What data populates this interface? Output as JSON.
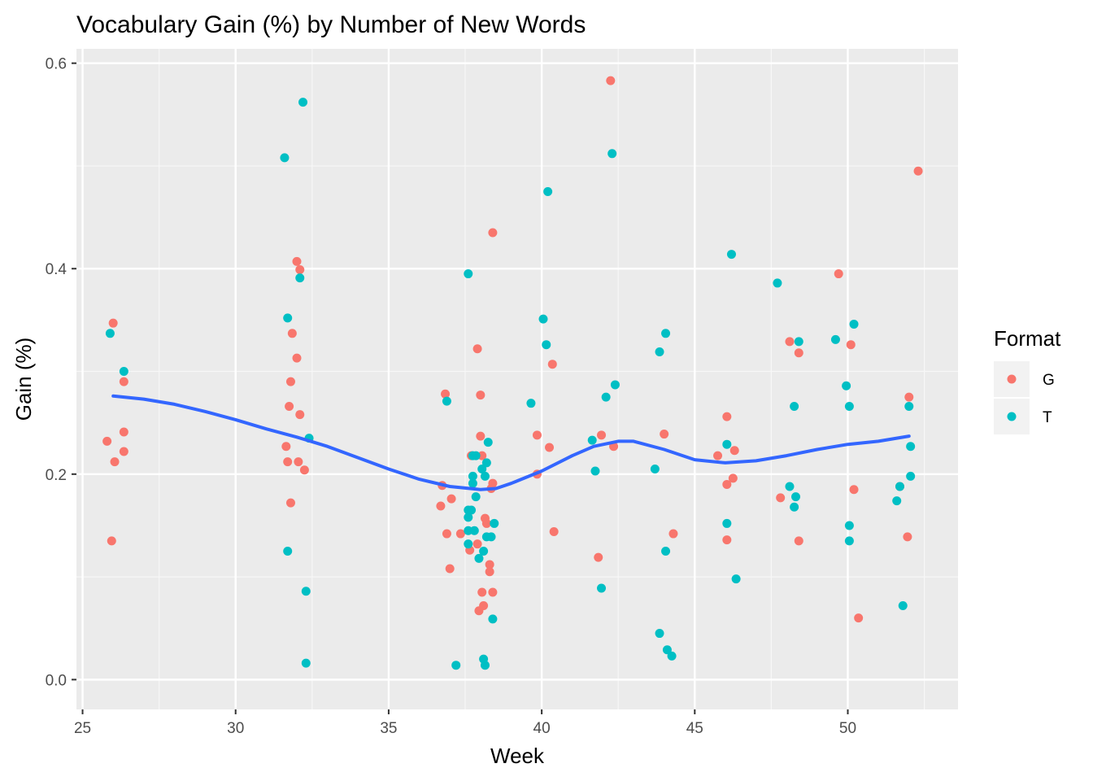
{
  "chart_data": {
    "type": "scatter",
    "title": "Vocabulary Gain (%) by Number of New Words",
    "xlabel": "Week",
    "ylabel": "Gain (%)",
    "xlim": [
      24.8,
      53.6
    ],
    "ylim": [
      -0.029,
      0.614
    ],
    "x_ticks": [
      {
        "value": 25,
        "label": "25"
      },
      {
        "value": 30,
        "label": "30"
      },
      {
        "value": 35,
        "label": "35"
      },
      {
        "value": 40,
        "label": "40"
      },
      {
        "value": 45,
        "label": "45"
      },
      {
        "value": 50,
        "label": "50"
      }
    ],
    "y_ticks": [
      {
        "value": 0.0,
        "label": "0.0"
      },
      {
        "value": 0.2,
        "label": "0.2"
      },
      {
        "value": 0.4,
        "label": "0.4"
      },
      {
        "value": 0.6,
        "label": "0.6"
      }
    ],
    "grid": true,
    "legend": {
      "title": "Format",
      "placement": "right"
    },
    "series": [
      {
        "name": "G",
        "color": "#F8766D",
        "points": [
          [
            25.8,
            0.232
          ],
          [
            26.0,
            0.347
          ],
          [
            25.95,
            0.135
          ],
          [
            26.05,
            0.212
          ],
          [
            26.35,
            0.29
          ],
          [
            26.35,
            0.241
          ],
          [
            26.35,
            0.222
          ],
          [
            31.65,
            0.227
          ],
          [
            31.7,
            0.212
          ],
          [
            31.75,
            0.266
          ],
          [
            31.8,
            0.29
          ],
          [
            31.8,
            0.172
          ],
          [
            31.85,
            0.337
          ],
          [
            32.0,
            0.407
          ],
          [
            32.0,
            0.313
          ],
          [
            32.05,
            0.212
          ],
          [
            32.1,
            0.399
          ],
          [
            32.1,
            0.258
          ],
          [
            32.25,
            0.204
          ],
          [
            36.7,
            0.169
          ],
          [
            36.75,
            0.189
          ],
          [
            36.85,
            0.278
          ],
          [
            36.9,
            0.142
          ],
          [
            37.0,
            0.108
          ],
          [
            37.05,
            0.176
          ],
          [
            37.35,
            0.142
          ],
          [
            37.65,
            0.126
          ],
          [
            37.7,
            0.218
          ],
          [
            37.9,
            0.322
          ],
          [
            37.9,
            0.132
          ],
          [
            37.95,
            0.067
          ],
          [
            38.0,
            0.237
          ],
          [
            38.0,
            0.277
          ],
          [
            38.05,
            0.218
          ],
          [
            38.05,
            0.085
          ],
          [
            38.1,
            0.072
          ],
          [
            38.15,
            0.157
          ],
          [
            38.2,
            0.152
          ],
          [
            38.3,
            0.105
          ],
          [
            38.3,
            0.112
          ],
          [
            38.35,
            0.186
          ],
          [
            38.4,
            0.435
          ],
          [
            38.4,
            0.191
          ],
          [
            38.4,
            0.085
          ],
          [
            39.85,
            0.238
          ],
          [
            39.85,
            0.2
          ],
          [
            40.25,
            0.226
          ],
          [
            40.35,
            0.307
          ],
          [
            40.4,
            0.144
          ],
          [
            41.85,
            0.119
          ],
          [
            41.95,
            0.238
          ],
          [
            42.25,
            0.583
          ],
          [
            42.35,
            0.227
          ],
          [
            44.0,
            0.239
          ],
          [
            44.3,
            0.142
          ],
          [
            45.75,
            0.218
          ],
          [
            46.05,
            0.256
          ],
          [
            46.05,
            0.19
          ],
          [
            46.05,
            0.136
          ],
          [
            46.25,
            0.196
          ],
          [
            46.3,
            0.223
          ],
          [
            47.8,
            0.177
          ],
          [
            48.1,
            0.329
          ],
          [
            48.4,
            0.318
          ],
          [
            48.4,
            0.135
          ],
          [
            49.7,
            0.395
          ],
          [
            50.1,
            0.326
          ],
          [
            50.2,
            0.185
          ],
          [
            50.35,
            0.06
          ],
          [
            51.7,
            0.188
          ],
          [
            51.95,
            0.139
          ],
          [
            52.0,
            0.275
          ],
          [
            52.3,
            0.495
          ]
        ]
      },
      {
        "name": "T",
        "color": "#00BFC4",
        "points": [
          [
            25.9,
            0.337
          ],
          [
            26.35,
            0.3
          ],
          [
            31.6,
            0.508
          ],
          [
            31.7,
            0.352
          ],
          [
            31.7,
            0.125
          ],
          [
            32.1,
            0.391
          ],
          [
            32.2,
            0.562
          ],
          [
            32.3,
            0.086
          ],
          [
            32.3,
            0.016
          ],
          [
            32.4,
            0.235
          ],
          [
            36.9,
            0.271
          ],
          [
            37.2,
            0.014
          ],
          [
            37.6,
            0.395
          ],
          [
            37.6,
            0.165
          ],
          [
            37.6,
            0.158
          ],
          [
            37.6,
            0.145
          ],
          [
            37.6,
            0.132
          ],
          [
            37.7,
            0.165
          ],
          [
            37.75,
            0.198
          ],
          [
            37.75,
            0.191
          ],
          [
            37.75,
            0.218
          ],
          [
            37.8,
            0.145
          ],
          [
            37.85,
            0.218
          ],
          [
            37.85,
            0.178
          ],
          [
            37.95,
            0.118
          ],
          [
            38.05,
            0.205
          ],
          [
            38.1,
            0.125
          ],
          [
            38.1,
            0.02
          ],
          [
            38.15,
            0.014
          ],
          [
            38.15,
            0.198
          ],
          [
            38.2,
            0.211
          ],
          [
            38.2,
            0.139
          ],
          [
            38.25,
            0.231
          ],
          [
            38.35,
            0.139
          ],
          [
            38.4,
            0.059
          ],
          [
            38.45,
            0.152
          ],
          [
            39.65,
            0.269
          ],
          [
            40.05,
            0.351
          ],
          [
            40.15,
            0.326
          ],
          [
            40.2,
            0.475
          ],
          [
            41.65,
            0.233
          ],
          [
            41.75,
            0.203
          ],
          [
            41.95,
            0.089
          ],
          [
            42.1,
            0.275
          ],
          [
            42.3,
            0.512
          ],
          [
            42.4,
            0.287
          ],
          [
            43.7,
            0.205
          ],
          [
            43.85,
            0.045
          ],
          [
            43.85,
            0.319
          ],
          [
            44.05,
            0.125
          ],
          [
            44.05,
            0.337
          ],
          [
            44.1,
            0.029
          ],
          [
            44.25,
            0.023
          ],
          [
            46.05,
            0.229
          ],
          [
            46.05,
            0.152
          ],
          [
            46.2,
            0.414
          ],
          [
            46.35,
            0.098
          ],
          [
            47.7,
            0.386
          ],
          [
            48.1,
            0.188
          ],
          [
            48.25,
            0.266
          ],
          [
            48.25,
            0.168
          ],
          [
            48.3,
            0.178
          ],
          [
            48.4,
            0.329
          ],
          [
            49.6,
            0.331
          ],
          [
            49.95,
            0.286
          ],
          [
            50.05,
            0.266
          ],
          [
            50.05,
            0.15
          ],
          [
            50.05,
            0.135
          ],
          [
            50.2,
            0.346
          ],
          [
            51.6,
            0.174
          ],
          [
            51.7,
            0.188
          ],
          [
            51.8,
            0.072
          ],
          [
            52.0,
            0.266
          ],
          [
            52.05,
            0.227
          ],
          [
            52.05,
            0.198
          ]
        ]
      }
    ],
    "smooth_line": {
      "color": "#3366FF",
      "points": [
        [
          26.0,
          0.276
        ],
        [
          27.0,
          0.273
        ],
        [
          28.0,
          0.268
        ],
        [
          29.0,
          0.261
        ],
        [
          30.0,
          0.253
        ],
        [
          31.0,
          0.244
        ],
        [
          32.0,
          0.236
        ],
        [
          33.0,
          0.227
        ],
        [
          34.0,
          0.216
        ],
        [
          35.0,
          0.205
        ],
        [
          36.0,
          0.195
        ],
        [
          37.0,
          0.188
        ],
        [
          38.0,
          0.185
        ],
        [
          38.5,
          0.186
        ],
        [
          39.0,
          0.191
        ],
        [
          40.0,
          0.203
        ],
        [
          41.0,
          0.218
        ],
        [
          41.7,
          0.227
        ],
        [
          42.5,
          0.232
        ],
        [
          43.0,
          0.232
        ],
        [
          44.0,
          0.224
        ],
        [
          45.0,
          0.214
        ],
        [
          46.0,
          0.211
        ],
        [
          47.0,
          0.213
        ],
        [
          48.0,
          0.218
        ],
        [
          49.0,
          0.224
        ],
        [
          50.0,
          0.229
        ],
        [
          51.0,
          0.232
        ],
        [
          52.0,
          0.237
        ]
      ]
    }
  }
}
